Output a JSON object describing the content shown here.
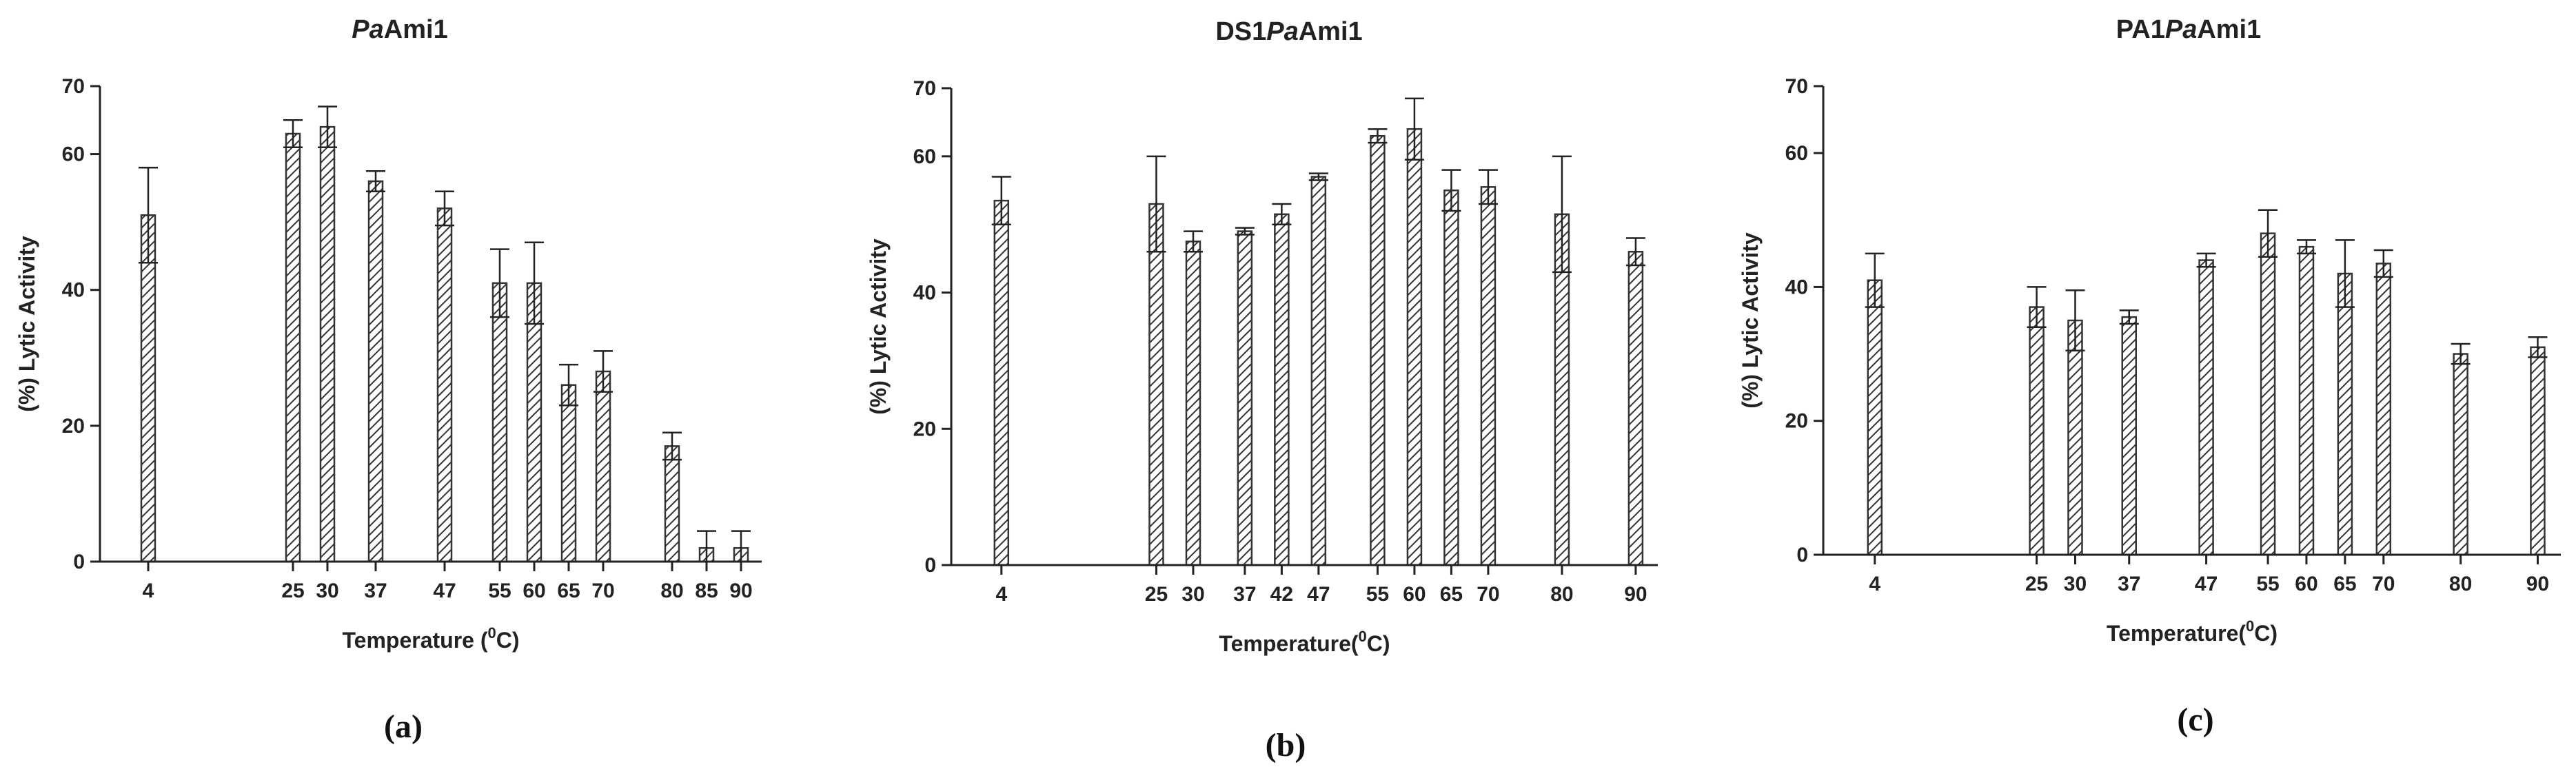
{
  "chart_data": [
    {
      "type": "bar",
      "panel_label": "(a)",
      "title_parts": [
        {
          "t": "Pa",
          "i": true
        },
        {
          "t": "Ami1",
          "i": false
        }
      ],
      "xlabel_parts": [
        {
          "t": "Temperature (",
          "sup": false
        },
        {
          "t": "0",
          "sup": true
        },
        {
          "t": "C)",
          "sup": false
        }
      ],
      "ylabel": "(%) Lytic Activity",
      "ylim": [
        0,
        70
      ],
      "yticks": [
        0,
        20,
        40,
        60,
        70
      ],
      "categories": [
        "4",
        "25",
        "30",
        "37",
        "47",
        "55",
        "60",
        "65",
        "70",
        "80",
        "85",
        "90"
      ],
      "x": [
        4,
        25,
        30,
        37,
        47,
        55,
        60,
        65,
        70,
        80,
        85,
        90
      ],
      "values": [
        51,
        63,
        64,
        56,
        52,
        41,
        41,
        26,
        28,
        17,
        2,
        2
      ],
      "errors": [
        7,
        2,
        3,
        1.5,
        2.5,
        5,
        6,
        3,
        3,
        2,
        2.5,
        2.5
      ],
      "grid": false
    },
    {
      "type": "bar",
      "panel_label": "(b)",
      "title_parts": [
        {
          "t": "DS1",
          "i": false
        },
        {
          "t": "Pa",
          "i": true
        },
        {
          "t": "Ami1",
          "i": false
        }
      ],
      "xlabel_parts": [
        {
          "t": "Temperature(",
          "sup": false
        },
        {
          "t": "0",
          "sup": true
        },
        {
          "t": "C)",
          "sup": false
        }
      ],
      "ylabel": "(%) Lytic Activity",
      "ylim": [
        0,
        70
      ],
      "yticks": [
        0,
        20,
        40,
        60,
        70
      ],
      "categories": [
        "4",
        "25",
        "30",
        "37",
        "42",
        "47",
        "55",
        "60",
        "65",
        "70",
        "80",
        "90"
      ],
      "x": [
        4,
        25,
        30,
        37,
        42,
        47,
        55,
        60,
        65,
        70,
        80,
        90
      ],
      "values": [
        53.5,
        53,
        47.5,
        49,
        51.5,
        57,
        63,
        64,
        55,
        55.5,
        51.5,
        46
      ],
      "errors": [
        3.5,
        7,
        1.5,
        0.5,
        1.5,
        0.5,
        1,
        4.5,
        3,
        2.5,
        8.5,
        2
      ],
      "grid": false
    },
    {
      "type": "bar",
      "panel_label": "(c)",
      "title_parts": [
        {
          "t": "PA1",
          "i": false
        },
        {
          "t": "Pa",
          "i": true
        },
        {
          "t": "Ami1",
          "i": false
        }
      ],
      "xlabel_parts": [
        {
          "t": "Temperature(",
          "sup": false
        },
        {
          "t": "0",
          "sup": true
        },
        {
          "t": "C)",
          "sup": false
        }
      ],
      "ylabel": "(%) Lytic Activity",
      "ylim": [
        0,
        70
      ],
      "yticks": [
        0,
        20,
        40,
        60,
        70
      ],
      "categories": [
        "4",
        "25",
        "30",
        "37",
        "47",
        "55",
        "60",
        "65",
        "70",
        "80",
        "90"
      ],
      "x": [
        4,
        25,
        30,
        37,
        47,
        55,
        60,
        65,
        70,
        80,
        90
      ],
      "values": [
        41,
        37,
        35,
        35.5,
        44,
        48,
        46,
        42,
        43.5,
        30,
        31
      ],
      "errors": [
        4,
        3,
        4.5,
        1,
        1,
        3.5,
        1,
        5,
        2,
        1.5,
        1.5
      ],
      "grid": false
    }
  ]
}
